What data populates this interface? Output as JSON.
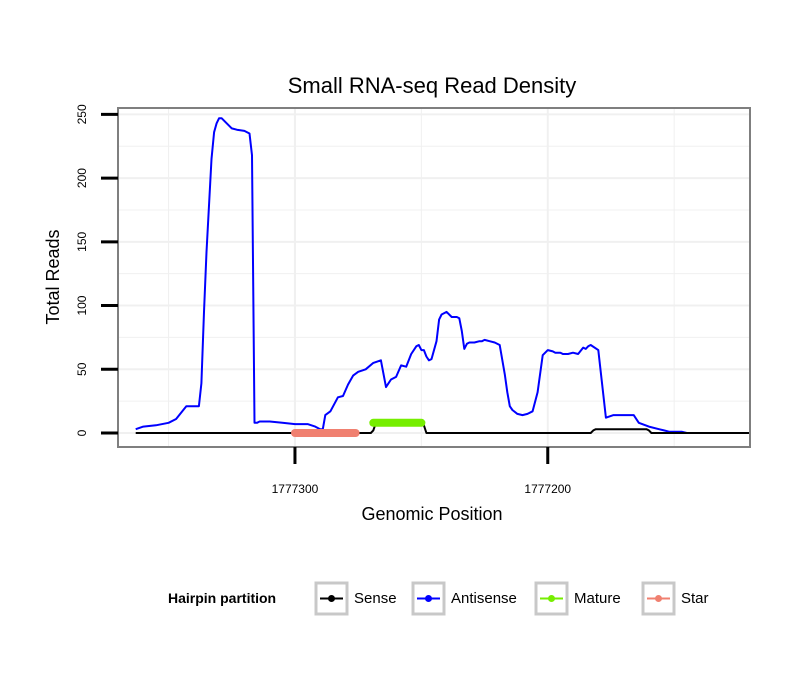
{
  "chart_data": {
    "type": "line",
    "title": "Small RNA-seq Read Density",
    "xlabel": "Genomic Position",
    "ylabel": "Total Reads",
    "x_reversed": true,
    "xlim": [
      1777370,
      1777120
    ],
    "ylim": [
      -11,
      255
    ],
    "xticks": [
      1777300,
      1777200
    ],
    "xtick_labels": [
      "1777300",
      "1777200"
    ],
    "yticks": [
      0,
      50,
      100,
      150,
      200,
      250
    ],
    "ytick_labels": [
      "0",
      "50",
      "100",
      "150",
      "200",
      "250"
    ],
    "grid": true,
    "legend": {
      "title": "Hairpin partition",
      "placement": "bottom",
      "entries": [
        "Sense",
        "Antisense",
        "Mature",
        "Star"
      ]
    },
    "series": [
      {
        "name": "Antisense",
        "color": "#0000ff",
        "x": [
          1777363,
          1777360,
          1777355,
          1777350,
          1777347,
          1777345,
          1777343,
          1777340,
          1777338,
          1777337,
          1777336,
          1777335,
          1777333,
          1777332,
          1777331,
          1777330,
          1777329,
          1777327,
          1777325,
          1777323,
          1777320,
          1777318,
          1777317,
          1777316,
          1777315,
          1777314,
          1777312,
          1777310,
          1777305,
          1777300,
          1777295,
          1777292,
          1777290,
          1777289,
          1777288,
          1777286,
          1777283,
          1777281,
          1777279,
          1777277,
          1777275,
          1777272,
          1777269,
          1777266,
          1777264,
          1777262,
          1777260,
          1777258,
          1777256,
          1777254,
          1777252,
          1777251,
          1777250,
          1777249,
          1777248,
          1777247,
          1777246,
          1777244,
          1777243,
          1777242,
          1777240,
          1777238,
          1777236,
          1777235,
          1777234,
          1777233,
          1777232,
          1777231,
          1777229,
          1777227,
          1777226,
          1777225,
          1777223,
          1777221,
          1777219,
          1777217,
          1777216,
          1777215,
          1777214,
          1777212,
          1777210,
          1777208,
          1777206,
          1777204,
          1777202,
          1777200,
          1777198,
          1777197,
          1777196,
          1777195,
          1777194,
          1777193,
          1777192,
          1777190,
          1777188,
          1777186,
          1777185,
          1777184,
          1777183,
          1777180,
          1777177,
          1777174,
          1777172,
          1777171,
          1777170,
          1777169,
          1777168,
          1777167,
          1777166,
          1777164,
          1777160,
          1777156,
          1777154,
          1777152,
          1777150,
          1777147,
          1777145,
          1777143,
          1777141,
          1777138,
          1777135,
          1777133
        ],
        "y": [
          3,
          5,
          6,
          8,
          11,
          16,
          21,
          21,
          21,
          39,
          95,
          142,
          215,
          236,
          243,
          247,
          247,
          243,
          239,
          238,
          237,
          235,
          218,
          8,
          8,
          9,
          9,
          9,
          8,
          7,
          7,
          5,
          3,
          3,
          14,
          17,
          28,
          29,
          38,
          45,
          48,
          50,
          55,
          57,
          36,
          42,
          44,
          53,
          52,
          62,
          68,
          69,
          65,
          65,
          60,
          57,
          58,
          72,
          89,
          93,
          95,
          91,
          91,
          90,
          80,
          66,
          70,
          71,
          71,
          72,
          72,
          73,
          72,
          71,
          69,
          46,
          32,
          21,
          18,
          15,
          14,
          15,
          17,
          32,
          61,
          65,
          64,
          63,
          63,
          63,
          62,
          62,
          62,
          63,
          62,
          67,
          66,
          68,
          69,
          65,
          12,
          14,
          14,
          14,
          14,
          14,
          14,
          14,
          14,
          8,
          5,
          3,
          2,
          1,
          1,
          1,
          0,
          0,
          0,
          0,
          0,
          0
        ]
      },
      {
        "name": "Sense",
        "color": "#000000",
        "x": [
          1777363,
          1777340,
          1777300,
          1777290,
          1777275,
          1777270,
          1777269,
          1777268,
          1777250,
          1777249,
          1777248,
          1777247,
          1777200,
          1777183,
          1777182,
          1777181,
          1777161,
          1777160,
          1777159,
          1777158,
          1777120
        ],
        "y": [
          0,
          0,
          0,
          0,
          0,
          0,
          2,
          8,
          8,
          6,
          0,
          0,
          0,
          0,
          2,
          3,
          3,
          2,
          0,
          0,
          0
        ]
      },
      {
        "name": "Mature",
        "color": "#76ee00",
        "x": [
          1777269,
          1777250
        ],
        "y": [
          8,
          8
        ]
      },
      {
        "name": "Star",
        "color": "#f08070",
        "x": [
          1777300,
          1777276
        ],
        "y": [
          0,
          0
        ]
      }
    ]
  }
}
